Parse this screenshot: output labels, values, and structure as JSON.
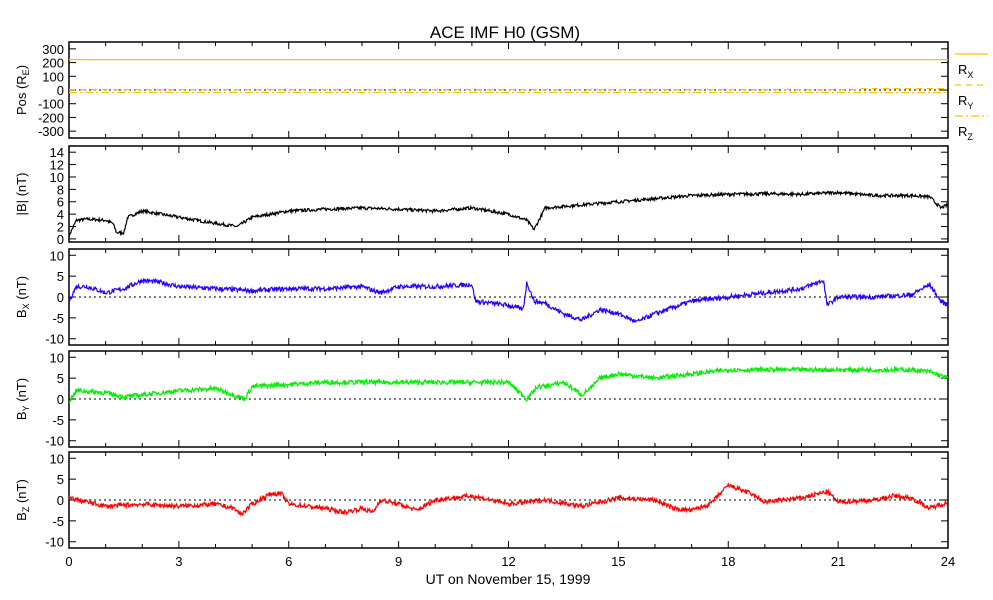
{
  "chart_data": {
    "type": "line",
    "title": "ACE IMF H0 (GSM)",
    "xlabel": "UT on November 15, 1999",
    "xlim": [
      0,
      24
    ],
    "xticks": [
      0,
      3,
      6,
      9,
      12,
      15,
      18,
      21,
      24
    ],
    "colors": {
      "pos": "#ffc000",
      "bmag": "#000000",
      "bx": "#2a00ff",
      "by": "#00ee00",
      "bz": "#ff0000"
    },
    "panels": [
      {
        "id": "pos",
        "ylabel": {
          "main": "Pos (R",
          "sub": "E",
          "tail": ")"
        },
        "ylim": [
          -350,
          350
        ],
        "yticks": [
          300,
          200,
          100,
          0,
          -100,
          -200,
          -300
        ],
        "zero_line": true,
        "legend": [
          {
            "main": "R",
            "sub": "X",
            "style": "solid"
          },
          {
            "main": "R",
            "sub": "Y",
            "style": "dashed"
          },
          {
            "main": "R",
            "sub": "Z",
            "style": "dashdot"
          }
        ],
        "series": [
          {
            "name": "Rx",
            "style": "solid",
            "x": [
              0,
              24
            ],
            "y": [
              222,
              222
            ]
          },
          {
            "name": "Ry",
            "style": "dashed",
            "x": [
              0,
              21.5,
              21.6,
              24
            ],
            "y": [
              3,
              3,
              10,
              10
            ]
          },
          {
            "name": "Rz",
            "style": "dashdot",
            "x": [
              0,
              24
            ],
            "y": [
              -18,
              -18
            ]
          }
        ]
      },
      {
        "id": "bmag",
        "ylabel": {
          "main": "|B| (nT)",
          "sub": "",
          "tail": ""
        },
        "ylim": [
          -0.5,
          15
        ],
        "yticks": [
          14,
          12,
          10,
          8,
          6,
          4,
          2,
          0
        ],
        "zero_line": false,
        "series": [
          {
            "name": "|B|",
            "style": "solid",
            "x": [
              0,
              0.2,
              0.5,
              1,
              1.2,
              1.3,
              1.5,
              1.6,
              2,
              3,
              4,
              4.6,
              5,
              6,
              7,
              8,
              9,
              10,
              11,
              12,
              12.5,
              12.7,
              13,
              14,
              15,
              16,
              17,
              18,
              19,
              20,
              21,
              22,
              23,
              23.5,
              23.8,
              24
            ],
            "y": [
              0.5,
              3,
              3.2,
              3,
              2.5,
              1,
              1,
              3.5,
              4.5,
              3.5,
              2.5,
              2,
              3.5,
              4.5,
              4.8,
              5,
              4.8,
              4.5,
              5,
              4,
              3,
              1.5,
              5,
              5.5,
              6,
              6.5,
              7,
              7.2,
              7.3,
              7.2,
              7.5,
              7,
              7,
              6.8,
              5,
              5.5
            ]
          }
        ]
      },
      {
        "id": "bx",
        "ylabel": {
          "main": "B",
          "sub": "X",
          "tail": " (nT)"
        },
        "ylim": [
          -11.5,
          11.5
        ],
        "yticks": [
          10,
          5,
          0,
          -5,
          -10
        ],
        "zero_line": true,
        "series": [
          {
            "name": "Bx",
            "style": "solid",
            "x": [
              0,
              0.2,
              0.5,
              1,
              1.5,
              2,
              2.5,
              3,
              4,
              5,
              6,
              7,
              8,
              8.5,
              9,
              10,
              11,
              11.1,
              12,
              12.4,
              12.5,
              12.7,
              13,
              13.5,
              14,
              14.5,
              15,
              15.5,
              16,
              17,
              18,
              19,
              20,
              20.6,
              20.7,
              21,
              22,
              23,
              23.5,
              23.8,
              24
            ],
            "y": [
              -1,
              2.5,
              2.5,
              1,
              2,
              4,
              3.5,
              2.5,
              2,
              1.5,
              2,
              2,
              2.5,
              1,
              2.5,
              2.5,
              3,
              -1,
              -2,
              -3,
              3.5,
              -1,
              -1.5,
              -4,
              -5.5,
              -3,
              -4,
              -6,
              -4,
              -1,
              0,
              1,
              2,
              4,
              -2,
              0,
              0,
              0.5,
              3,
              -1,
              -2
            ]
          }
        ]
      },
      {
        "id": "by",
        "ylabel": {
          "main": "B",
          "sub": "Y",
          "tail": " (nT)"
        },
        "ylim": [
          -11.5,
          11.5
        ],
        "yticks": [
          10,
          5,
          0,
          -5,
          -10
        ],
        "zero_line": true,
        "series": [
          {
            "name": "By",
            "style": "solid",
            "x": [
              0,
              0.2,
              1,
              1.5,
              2,
              3,
              4,
              4.5,
              4.8,
              5,
              6,
              7,
              8,
              9,
              10,
              11,
              12,
              12.5,
              12.8,
              13,
              13.5,
              14,
              14.3,
              14.5,
              15,
              16,
              17,
              18,
              19,
              20,
              21,
              22,
              23,
              23.5,
              24
            ],
            "y": [
              -0.5,
              2,
              1.5,
              0.5,
              1,
              2,
              2.5,
              1,
              0,
              3,
              3.5,
              4,
              4,
              4,
              4,
              4,
              4,
              0,
              3,
              3,
              4,
              1,
              3,
              5,
              6,
              5,
              6,
              7,
              7,
              7,
              7,
              7,
              7,
              6.5,
              5
            ]
          }
        ]
      },
      {
        "id": "bz",
        "ylabel": {
          "main": "B",
          "sub": "Z",
          "tail": " (nT)"
        },
        "ylim": [
          -11.5,
          11.5
        ],
        "yticks": [
          10,
          5,
          0,
          -5,
          -10
        ],
        "zero_line": true,
        "series": [
          {
            "name": "Bz",
            "style": "solid",
            "x": [
              0,
              0.5,
              1,
              2,
              3,
              4,
              4.5,
              4.7,
              5,
              5.5,
              5.8,
              6,
              7,
              7.5,
              8,
              8.3,
              8.5,
              9,
              9.5,
              10,
              11,
              12,
              13,
              14,
              15,
              16,
              16.5,
              17,
              17.5,
              18,
              18.5,
              19,
              20,
              20.7,
              21,
              22,
              22.5,
              23,
              23.5,
              24
            ],
            "y": [
              0.5,
              -0.5,
              -1.5,
              -1,
              -1.5,
              -1,
              -2,
              -3.5,
              -1,
              1.5,
              1.5,
              -1,
              -2,
              -3,
              -2,
              -3,
              0,
              -1,
              -2.5,
              0,
              1,
              -1,
              0,
              -1.5,
              0.5,
              0,
              -2,
              -2.5,
              -1,
              3.5,
              2,
              -0.5,
              0.5,
              2,
              -0.5,
              0,
              1,
              0.5,
              -2,
              -0.5
            ]
          }
        ]
      }
    ]
  }
}
